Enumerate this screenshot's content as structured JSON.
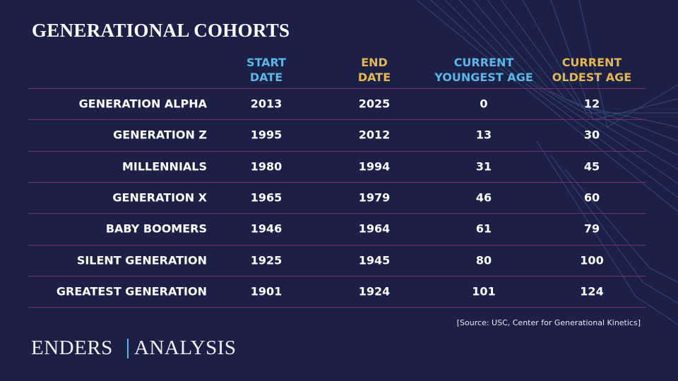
{
  "header": {
    "title": "GENERATIONAL COHORTS"
  },
  "table": {
    "columns": [
      [
        "START",
        "DATE"
      ],
      [
        "END",
        "DATE"
      ],
      [
        "CURRENT",
        "YOUNGEST AGE"
      ],
      [
        "CURRENT",
        "OLDEST AGE"
      ]
    ],
    "rows": [
      [
        "GENERATION ALPHA",
        2013,
        2025,
        0,
        12
      ],
      [
        "GENERATION Z",
        1995,
        2012,
        13,
        30
      ],
      [
        "MILLENNIALS",
        1980,
        1994,
        31,
        45
      ],
      [
        "GENERATION X",
        1965,
        1979,
        46,
        60
      ],
      [
        "BABY BOOMERS",
        1946,
        1964,
        61,
        79
      ],
      [
        "SILENT GENERATION",
        1925,
        1945,
        80,
        100
      ],
      [
        "GREATEST GENERATION",
        1901,
        1924,
        101,
        124
      ]
    ]
  },
  "footer": {
    "source": "[Source: USC, Center for Generational Kinetics]",
    "logo": [
      "ENDERS",
      "ANALYSIS"
    ]
  }
}
